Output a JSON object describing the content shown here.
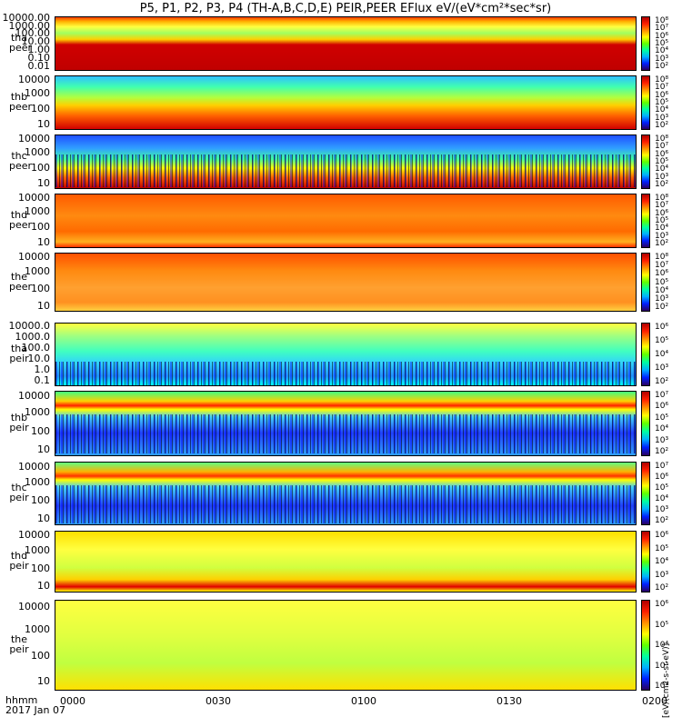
{
  "title": "P5, P1, P2, P3, P4 (TH-A,B,C,D,E) PEIR,PEER EFlux eV/(eV*cm²*sec*sr)",
  "chart_data": {
    "type": "heatmap",
    "title": "P5, P1, P2, P3, P4 (TH-A,B,C,D,E) PEIR,PEER EFlux eV/(eV*cm²*sec*sr)",
    "xlabel_line1": "hhmm",
    "xlabel_line2": "2017 Jan 07",
    "xticks": [
      "0000",
      "0030",
      "0100",
      "0130",
      "0200"
    ],
    "colorbar_caption": "[eV/(cm2-s-sr-eV)]",
    "colorbar_unit": "eV/(cm2-s-sr-eV)",
    "panels": [
      {
        "name": "tha-peer",
        "probe": "tha",
        "species": "peer",
        "yticks": [
          "10000.00",
          "1000.00",
          "100.00",
          "10.00",
          "1.00",
          "0.10",
          "0.01"
        ],
        "cbar_ticks": [
          "10⁸",
          "10⁷",
          "10⁶",
          "10⁵",
          "10⁴",
          "10³",
          "10²"
        ]
      },
      {
        "name": "thb-peer",
        "probe": "thb",
        "species": "peer",
        "yticks": [
          "10000",
          "1000",
          "100",
          "10"
        ],
        "cbar_ticks": [
          "10⁸",
          "10⁷",
          "10⁶",
          "10⁵",
          "10⁴",
          "10³",
          "10²"
        ]
      },
      {
        "name": "thc-peer",
        "probe": "thc",
        "species": "peer",
        "yticks": [
          "10000",
          "1000",
          "100",
          "10"
        ],
        "cbar_ticks": [
          "10⁸",
          "10⁷",
          "10⁶",
          "10⁵",
          "10⁴",
          "10³",
          "10²"
        ]
      },
      {
        "name": "thd-peer",
        "probe": "thd",
        "species": "peer",
        "yticks": [
          "10000",
          "1000",
          "100",
          "10"
        ],
        "cbar_ticks": [
          "10⁸",
          "10⁷",
          "10⁶",
          "10⁵",
          "10⁴",
          "10³",
          "10²"
        ]
      },
      {
        "name": "the-peer",
        "probe": "the",
        "species": "peer",
        "yticks": [
          "10000",
          "1000",
          "100",
          "10"
        ],
        "cbar_ticks": [
          "10⁸",
          "10⁷",
          "10⁶",
          "10⁵",
          "10⁴",
          "10³",
          "10²"
        ]
      },
      {
        "name": "tha-peir",
        "probe": "tha",
        "species": "peir",
        "yticks": [
          "10000.0",
          "1000.0",
          "100.0",
          "10.0",
          "1.0",
          "0.1"
        ],
        "cbar_ticks": [
          "10⁶",
          "10⁵",
          "10⁴",
          "10³",
          "10²"
        ]
      },
      {
        "name": "thb-peir",
        "probe": "thb",
        "species": "peir",
        "yticks": [
          "10000",
          "1000",
          "100",
          "10"
        ],
        "cbar_ticks": [
          "10⁷",
          "10⁶",
          "10⁵",
          "10⁴",
          "10³",
          "10²"
        ]
      },
      {
        "name": "thc-peir",
        "probe": "thc",
        "species": "peir",
        "yticks": [
          "10000",
          "1000",
          "100",
          "10"
        ],
        "cbar_ticks": [
          "10⁷",
          "10⁶",
          "10⁵",
          "10⁴",
          "10³",
          "10²"
        ]
      },
      {
        "name": "thd-peir",
        "probe": "thd",
        "species": "peir",
        "yticks": [
          "10000",
          "1000",
          "100",
          "10"
        ],
        "cbar_ticks": [
          "10⁶",
          "10⁵",
          "10⁴",
          "10³",
          "10²"
        ]
      },
      {
        "name": "the-peir",
        "probe": "the",
        "species": "peir",
        "yticks": [
          "10000",
          "1000",
          "100",
          "10"
        ],
        "cbar_ticks": [
          "10⁶",
          "10⁵",
          "10⁴",
          "10³",
          "10²"
        ]
      }
    ]
  }
}
